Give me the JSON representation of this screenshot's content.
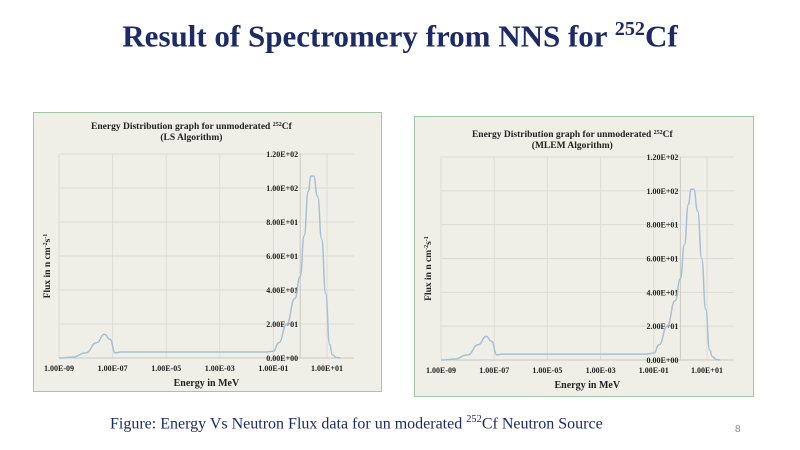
{
  "slide": {
    "title": "Result of Spectromery from NNS for ",
    "title_sup": "252",
    "title_end": "Cf",
    "caption": "Figure: Energy Vs Neutron Flux data for un moderated ",
    "caption_sup": "252",
    "caption_end": "Cf Neutron Source",
    "page": "8"
  },
  "colors": {
    "title": "#1c2a66",
    "line": "#a6c0d8",
    "bg": "#efefe8",
    "border": "#9fc9a4"
  },
  "chart_data": [
    {
      "type": "line",
      "title": "Energy Distribution graph for unmoderated 252Cf",
      "subtitle": "(LS Algorithm)",
      "xlabel": "Energy in MeV",
      "ylabel": "Flux in n cm-2s-1",
      "xscale": "log",
      "xlim": [
        1e-09,
        100.0
      ],
      "ylim": [
        0,
        120
      ],
      "xticks": [
        "1.00E-09",
        "1.00E-07",
        "1.00E-05",
        "1.00E-03",
        "1.00E-01",
        "1.00E+01"
      ],
      "yticks": [
        "0.00E+00",
        "2.00E+01",
        "4.00E+01",
        "6.00E+01",
        "8.00E+01",
        "1.00E+02",
        "1.20E+02"
      ],
      "log10_x": [
        -9,
        -8.5,
        -8,
        -7.6,
        -7.3,
        -7.1,
        -6.9,
        -6.7,
        -6,
        -4,
        -2,
        -1.3,
        -1,
        -0.8,
        -0.5,
        -0.2,
        0,
        0.15,
        0.3,
        0.4,
        0.5,
        0.65,
        0.8,
        0.95,
        1.1,
        1.2,
        1.35,
        1.5
      ],
      "flux": [
        0,
        0.5,
        3,
        9,
        14,
        11,
        3,
        3.5,
        3.5,
        3.5,
        3.5,
        3.5,
        4,
        9,
        20,
        35,
        48,
        72,
        98,
        107,
        107,
        95,
        70,
        38,
        8,
        2,
        0.3,
        0
      ]
    },
    {
      "type": "line",
      "title": "Energy Distribution graph for unmoderated 252Cf",
      "subtitle": "(MLEM Algorithm)",
      "xlabel": "Energy in MeV",
      "ylabel": "Flux in n cm-2s-1",
      "xscale": "log",
      "xlim": [
        1e-09,
        100.0
      ],
      "ylim": [
        0,
        120
      ],
      "xticks": [
        "1.00E-09",
        "1.00E-07",
        "1.00E-05",
        "1.00E-03",
        "1.00E-01",
        "1.00E+01"
      ],
      "yticks": [
        "0.00E+00",
        "2.00E+01",
        "4.00E+01",
        "6.00E+01",
        "8.00E+01",
        "1.00E+02",
        "1.20E+02"
      ],
      "log10_x": [
        -9,
        -8.5,
        -8,
        -7.6,
        -7.3,
        -7.1,
        -6.9,
        -6.7,
        -6,
        -4,
        -2,
        -1.3,
        -1,
        -0.8,
        -0.5,
        -0.2,
        0,
        0.15,
        0.3,
        0.4,
        0.5,
        0.65,
        0.8,
        0.95,
        1.1,
        1.2,
        1.35,
        1.5
      ],
      "flux": [
        0,
        0.5,
        3,
        9,
        14,
        11,
        3,
        3.5,
        3.5,
        3.5,
        3.5,
        3.5,
        4,
        9,
        20,
        35,
        48,
        68,
        92,
        101,
        101,
        88,
        60,
        30,
        6,
        2,
        0.3,
        0
      ]
    }
  ]
}
